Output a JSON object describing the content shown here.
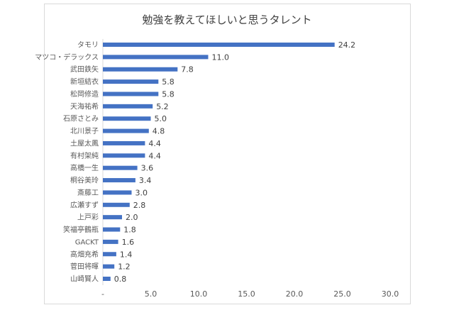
{
  "chart_data": {
    "type": "bar",
    "orientation": "horizontal",
    "title": "勉強を教えてほしいと思うタレント",
    "categories": [
      "タモリ",
      "マツコ・デラックス",
      "武田鉄矢",
      "新垣結衣",
      "松岡修造",
      "天海祐希",
      "石原さとみ",
      "北川景子",
      "土屋太鳳",
      "有村架純",
      "高橋一生",
      "桐谷美玲",
      "斎藤工",
      "広瀬すず",
      "上戸彩",
      "笑福亭鶴瓶",
      "GACKT",
      "高畑充希",
      "菅田将暉",
      "山崎賢人"
    ],
    "values": [
      24.2,
      11.0,
      7.8,
      5.8,
      5.8,
      5.2,
      5.0,
      4.8,
      4.4,
      4.4,
      3.6,
      3.4,
      3.0,
      2.8,
      2.0,
      1.8,
      1.6,
      1.4,
      1.2,
      0.8
    ],
    "xlim": [
      0,
      30
    ],
    "xticks": [
      "-",
      "5.0",
      "10.0",
      "15.0",
      "20.0",
      "25.0",
      "30.0"
    ],
    "grid": false,
    "bar_color": "#4472c4"
  }
}
